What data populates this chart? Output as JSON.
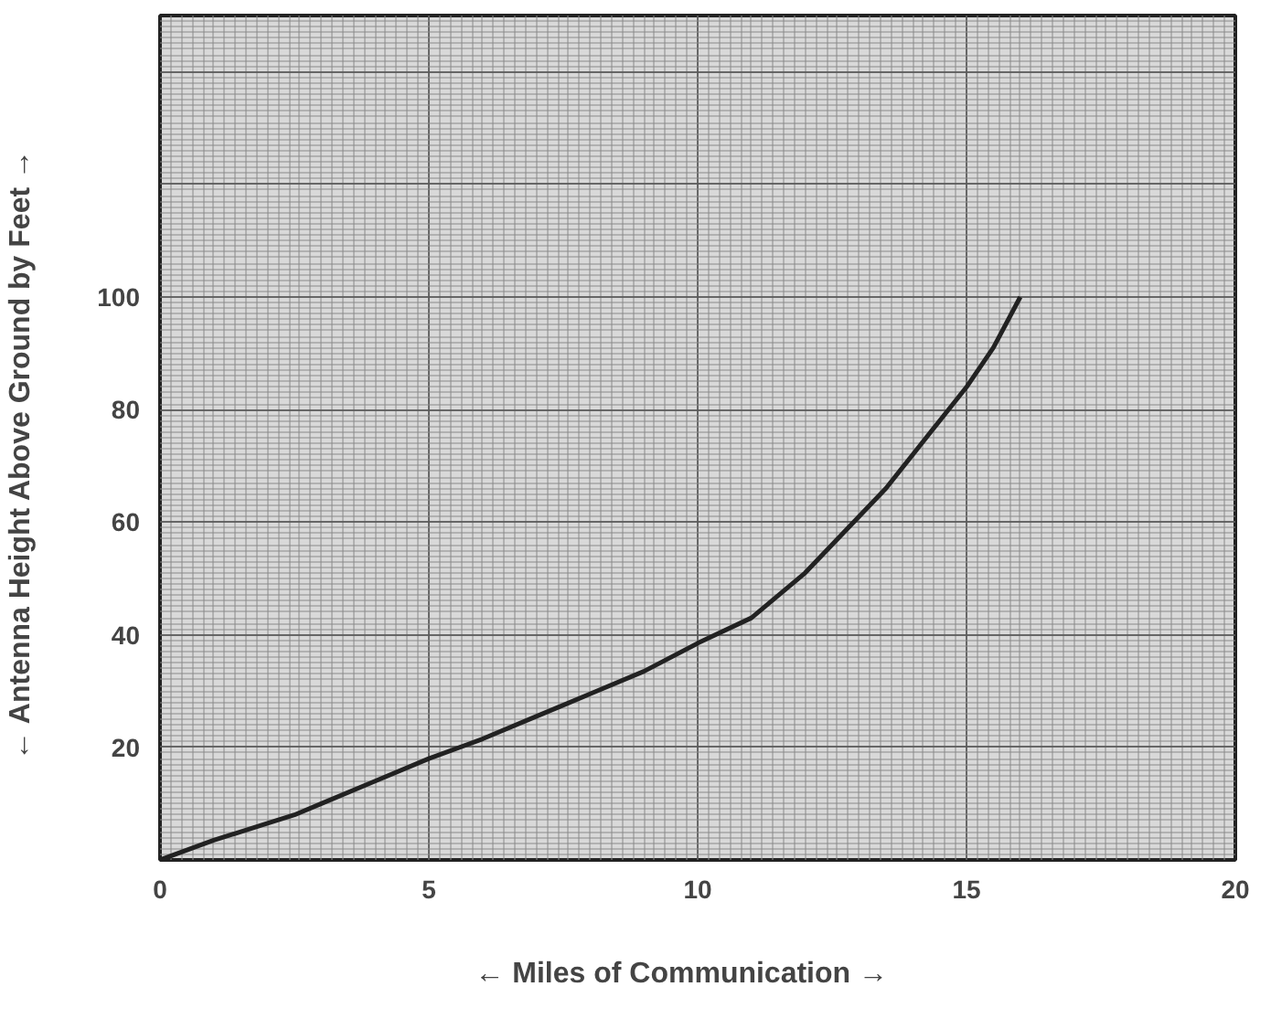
{
  "chart_data": {
    "type": "line",
    "xlabel": "←   Miles of Communication   →",
    "ylabel": "←   Antenna Height Above Ground by Feet   →",
    "x": [
      0,
      1,
      2,
      2.5,
      3,
      4,
      5,
      6,
      7,
      7.5,
      8,
      9,
      10,
      11,
      12,
      12.5,
      13,
      13.5,
      14,
      14.5,
      15,
      15.5,
      16
    ],
    "series": [
      {
        "color": "#222222",
        "values": [
          0,
          3.5,
          6.5,
          8,
          10,
          14,
          18,
          21.5,
          25.5,
          27.5,
          29.5,
          33.5,
          38.5,
          43,
          51,
          56,
          61,
          66,
          72,
          78,
          84,
          91,
          100
        ]
      }
    ],
    "xlim": [
      0,
      20
    ],
    "ylim": [
      0,
      150
    ],
    "xticks": [
      0,
      5,
      10,
      15,
      20
    ],
    "yticks": [
      {
        "value": 0,
        "label": null
      },
      20,
      40,
      60,
      80,
      100,
      {
        "value": 120,
        "label": null
      },
      {
        "value": 140,
        "label": null
      }
    ],
    "grid": true,
    "marker": "none",
    "line_style": "solid"
  }
}
